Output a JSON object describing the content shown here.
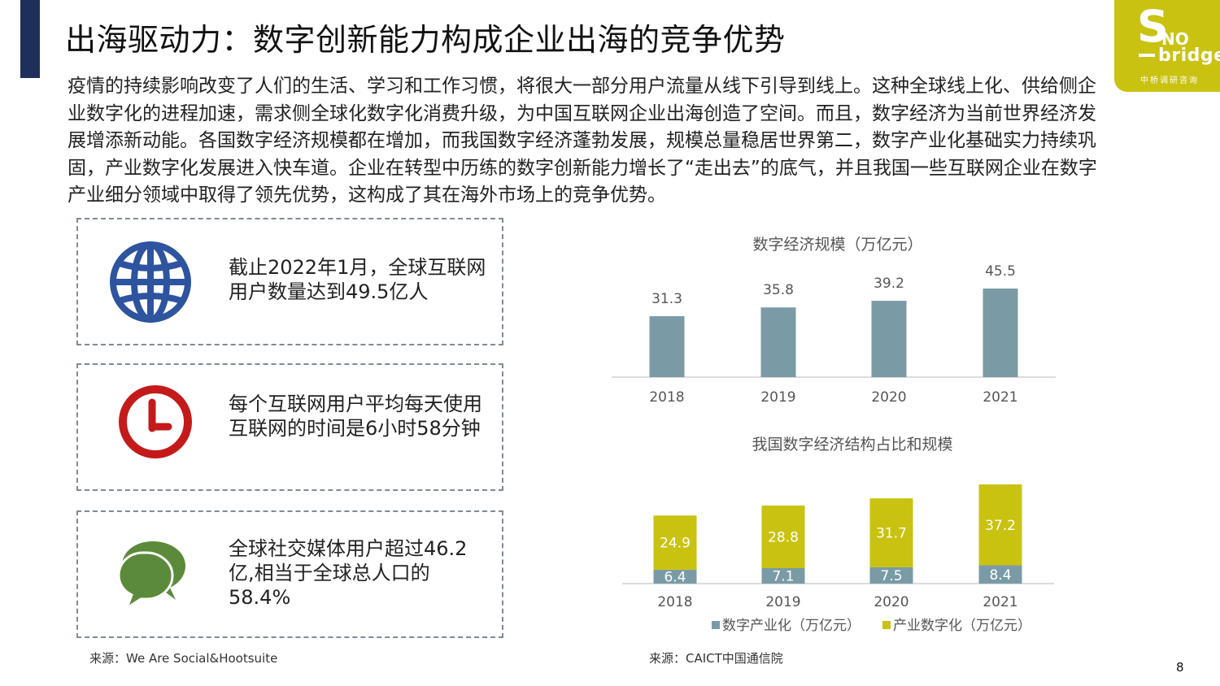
{
  "header": {
    "title": "出海驱动力：数字创新能力构成企业出海的竞争优势"
  },
  "logo": {
    "letter": "S",
    "no": "NO",
    "bridges": "bridges",
    "cn": "中桥调研咨询",
    "color": "#c9c211"
  },
  "intro": "疫情的持续影响改变了人们的生活、学习和工作习惯，将很大一部分用户流量从线下引导到线上。这种全球线上化、供给侧企业数字化的进程加速，需求侧全球化数字化消费升级，为中国互联网企业出海创造了空间。而且，数字经济为当前世界经济发展增添新动能。各国数字经济规模都在增加，而我国数字经济蓬勃发展，规模总量稳居世界第二，数字产业化基础实力持续巩固，产业数字化发展进入快车道。企业在转型中历练的数字创新能力增长了“走出去”的底气，并且我国一些互联网企业在数字产业细分领域中取得了领先优势，这构成了其在海外市场上的竞争优势。",
  "stats": [
    {
      "icon": "globe-icon",
      "text": "截止2022年1月，全球互联网用户数量达到49.5亿人",
      "color": "#2e54a0"
    },
    {
      "icon": "clock-icon",
      "text": "每个互联网用户平均每天使用互联网的时间是6小时58分钟",
      "color": "#c41a1a"
    },
    {
      "icon": "chat-bubbles-icon",
      "text": "全球社交媒体用户超过46.2亿,相当于全球总人口的58.4%",
      "color": "#5b8a3a"
    }
  ],
  "source_left": "来源：We Are Social&Hootsuite",
  "source_right": "来源：CAICT中国通信院",
  "page_number": "8",
  "chart_data": [
    {
      "type": "bar",
      "title": "数字经济规模（万亿元）",
      "categories": [
        "2018",
        "2019",
        "2020",
        "2021"
      ],
      "values": [
        31.3,
        35.8,
        39.2,
        45.5
      ],
      "value_labels": [
        "31.3",
        "35.8",
        "39.2",
        "45.5"
      ],
      "color": "#7a9ba6",
      "baseline": 0,
      "ylim": [
        0,
        45.5
      ],
      "grid": false
    },
    {
      "type": "bar",
      "stacked": true,
      "title": "我国数字经济结构占比和规模",
      "categories": [
        "2018",
        "2019",
        "2020",
        "2021"
      ],
      "series": [
        {
          "name": "数字产业化（万亿元）",
          "values": [
            6.4,
            7.1,
            7.5,
            8.4
          ],
          "labels": [
            "6.4",
            "7.1",
            "7.5",
            "8.4"
          ],
          "color": "#7a9ba6"
        },
        {
          "name": "产业数字化（万亿元）",
          "values": [
            24.9,
            28.8,
            31.7,
            37.2
          ],
          "labels": [
            "24.9",
            "28.8",
            "31.7",
            "37.2"
          ],
          "color": "#c9c211"
        }
      ],
      "legend": "bottom",
      "ylim": [
        0,
        45.6
      ],
      "grid": false
    }
  ]
}
